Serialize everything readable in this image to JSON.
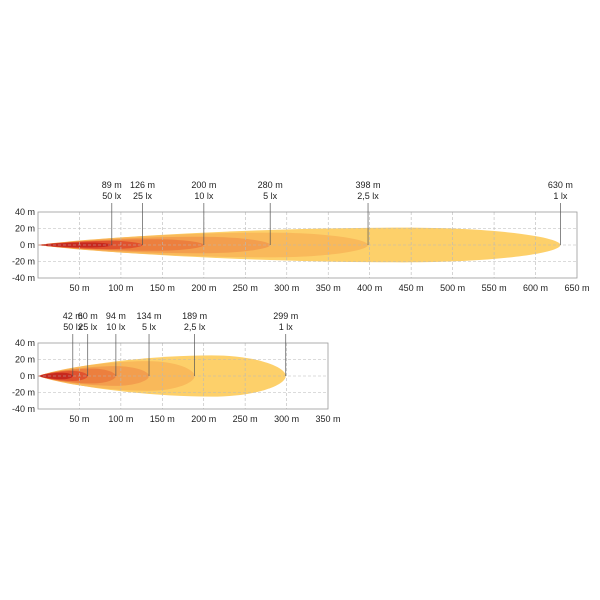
{
  "chart_data": [
    {
      "type": "area",
      "title": "",
      "xlabel": "",
      "ylabel": "",
      "xlim": [
        0,
        650
      ],
      "ylim": [
        -40,
        40
      ],
      "grid": true,
      "xticks": [
        "50 m",
        "100 m",
        "150 m",
        "200 m",
        "250 m",
        "300 m",
        "350 m",
        "400 m",
        "450 m",
        "500 m",
        "550 m",
        "600 m",
        "650 m"
      ],
      "yticks": [
        "40 m",
        "20 m",
        "0 m",
        "-20 m",
        "-40 m"
      ],
      "xtick_values": [
        50,
        100,
        150,
        200,
        250,
        300,
        350,
        400,
        450,
        500,
        550,
        600,
        650
      ],
      "ytick_values": [
        40,
        20,
        0,
        -20,
        -40
      ],
      "series": [
        {
          "distance": 630,
          "distance_label": "630 m",
          "illuminance": 1,
          "illuminance_label": "1 lx",
          "half_width": 21,
          "color": "#FDD06A"
        },
        {
          "distance": 398,
          "distance_label": "398 m",
          "illuminance": 2.5,
          "illuminance_label": "2,5 lx",
          "half_width": 15,
          "color": "#F9B95A"
        },
        {
          "distance": 280,
          "distance_label": "280 m",
          "illuminance": 5,
          "illuminance_label": "5 lx",
          "half_width": 10,
          "color": "#F39E4E"
        },
        {
          "distance": 200,
          "distance_label": "200 m",
          "illuminance": 10,
          "illuminance_label": "10 lx",
          "half_width": 7,
          "color": "#EC7F3E"
        },
        {
          "distance": 126,
          "distance_label": "126 m",
          "illuminance": 25,
          "illuminance_label": "25 lx",
          "half_width": 5,
          "color": "#E0522E"
        },
        {
          "distance": 89,
          "distance_label": "89 m",
          "illuminance": 50,
          "illuminance_label": "50 lx",
          "half_width": 3,
          "color": "#C7281E"
        }
      ]
    },
    {
      "type": "area",
      "title": "",
      "xlabel": "",
      "ylabel": "",
      "xlim": [
        0,
        350
      ],
      "ylim": [
        -40,
        40
      ],
      "grid": true,
      "xticks": [
        "50 m",
        "100 m",
        "150 m",
        "200 m",
        "250 m",
        "300 m",
        "350 m"
      ],
      "yticks": [
        "40 m",
        "20 m",
        "0 m",
        "-20 m",
        "-40 m"
      ],
      "xtick_values": [
        50,
        100,
        150,
        200,
        250,
        300,
        350
      ],
      "ytick_values": [
        40,
        20,
        0,
        -20,
        -40
      ],
      "series": [
        {
          "distance": 299,
          "distance_label": "299 m",
          "illuminance": 1,
          "illuminance_label": "1 lx",
          "half_width": 25,
          "color": "#FDD06A"
        },
        {
          "distance": 189,
          "distance_label": "189 m",
          "illuminance": 2.5,
          "illuminance_label": "2,5 lx",
          "half_width": 18,
          "color": "#F9B95A"
        },
        {
          "distance": 134,
          "distance_label": "134 m",
          "illuminance": 5,
          "illuminance_label": "5 lx",
          "half_width": 12,
          "color": "#F39E4E"
        },
        {
          "distance": 94,
          "distance_label": "94 m",
          "illuminance": 10,
          "illuminance_label": "10 lx",
          "half_width": 9,
          "color": "#EC7F3E"
        },
        {
          "distance": 60,
          "distance_label": "60 m",
          "illuminance": 25,
          "illuminance_label": "25 lx",
          "half_width": 6,
          "color": "#E0522E"
        },
        {
          "distance": 42,
          "distance_label": "42 m",
          "illuminance": 50,
          "illuminance_label": "50 lx",
          "half_width": 4,
          "color": "#C7281E"
        }
      ]
    }
  ]
}
